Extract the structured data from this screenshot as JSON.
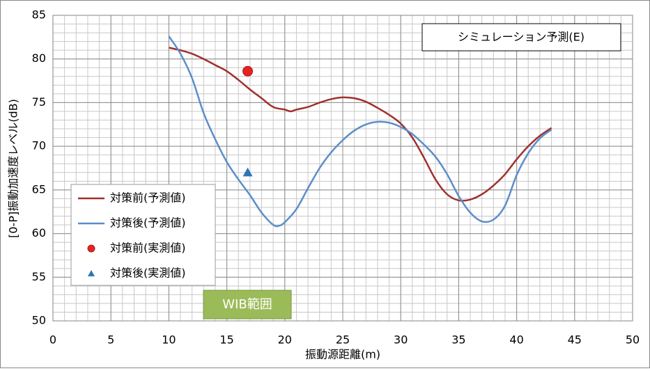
{
  "chart_data": {
    "type": "line",
    "xlabel": "振動源距離(m)",
    "ylabel": "[0-P]振動加速度レベル(dB)",
    "xlim": [
      0,
      50
    ],
    "xticks": [
      0,
      5,
      10,
      15,
      20,
      25,
      30,
      35,
      40,
      45,
      50
    ],
    "ylim": [
      50,
      85
    ],
    "yticks": [
      50,
      55,
      60,
      65,
      70,
      75,
      80,
      85
    ],
    "grid": true,
    "xminor": 1,
    "yminor": 1,
    "legend": "left",
    "series": [
      {
        "name": "対策前(予測値)",
        "type": "line",
        "color": "#a0302e",
        "x": [
          10,
          11,
          12,
          13,
          14,
          15,
          16,
          17,
          18,
          19,
          20,
          20.5,
          21,
          22,
          23,
          24,
          25,
          26,
          27,
          28,
          29,
          30,
          31,
          32,
          33,
          34,
          35,
          36,
          37,
          38,
          39,
          40,
          41,
          42,
          43
        ],
        "values": [
          81.3,
          81.0,
          80.6,
          80.0,
          79.3,
          78.6,
          77.6,
          76.5,
          75.5,
          74.5,
          74.2,
          74.0,
          74.2,
          74.5,
          75.0,
          75.4,
          75.6,
          75.5,
          75.1,
          74.4,
          73.6,
          72.6,
          71.0,
          68.7,
          66.2,
          64.5,
          63.8,
          63.9,
          64.5,
          65.5,
          66.8,
          68.5,
          70.0,
          71.2,
          72.1
        ]
      },
      {
        "name": "対策後(予測値)",
        "type": "line",
        "color": "#5b8ec9",
        "x": [
          10,
          11,
          12,
          13,
          14,
          15,
          16,
          17,
          18,
          19,
          19.5,
          20,
          21,
          22,
          23,
          24,
          25,
          26,
          27,
          28,
          29,
          30,
          31,
          32,
          33,
          34,
          35,
          36,
          37,
          38,
          39,
          40,
          41,
          42,
          43
        ],
        "values": [
          82.6,
          80.6,
          77.8,
          73.8,
          70.8,
          68.2,
          66.2,
          64.4,
          62.4,
          61.0,
          60.9,
          61.3,
          62.8,
          65.2,
          67.5,
          69.3,
          70.7,
          71.8,
          72.5,
          72.8,
          72.7,
          72.2,
          71.4,
          70.2,
          68.8,
          66.8,
          64.3,
          62.4,
          61.4,
          61.6,
          63.2,
          66.7,
          69.2,
          70.9,
          71.9
        ]
      },
      {
        "name": "対策前(実測値)",
        "type": "scatter",
        "marker": "circle",
        "color": "#e8231f",
        "x": [
          16.8
        ],
        "values": [
          78.6
        ]
      },
      {
        "name": "対策後(実測値)",
        "type": "scatter",
        "marker": "triangle",
        "color": "#2e75b6",
        "x": [
          16.8
        ],
        "values": [
          67.0
        ]
      }
    ],
    "annotations": [
      {
        "text": "シミュレーション予測(E)",
        "style": "box"
      },
      {
        "text": "WIB範囲",
        "style": "green"
      }
    ]
  }
}
